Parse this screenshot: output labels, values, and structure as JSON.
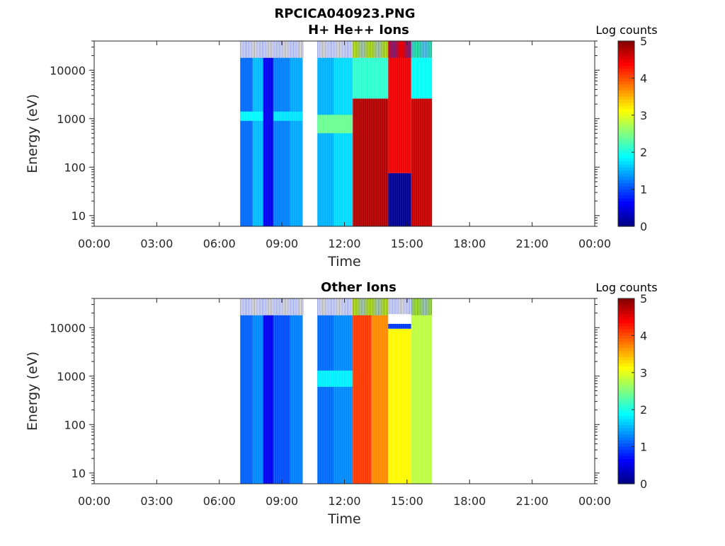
{
  "figure": {
    "title_line1": "RPCICA040923.PNG",
    "background": "#ffffff"
  },
  "chart_data": [
    {
      "type": "heatmap",
      "title": "H+ He++ Ions",
      "xlabel": "Time",
      "ylabel": "Energy (eV)",
      "x_tick_labels": [
        "00:00",
        "03:00",
        "06:00",
        "09:00",
        "12:00",
        "15:00",
        "18:00",
        "21:00",
        "00:00"
      ],
      "x_range_hours": [
        0,
        24
      ],
      "y_scale": "log",
      "y_range_eV": [
        6,
        40000
      ],
      "y_tick_values": [
        10,
        100,
        1000,
        10000
      ],
      "y_tick_labels": [
        "10",
        "100",
        "1000",
        "10000"
      ],
      "colorbar": {
        "label": "Log counts",
        "range": [
          0,
          5
        ],
        "tick_labels": [
          "0",
          "1",
          "2",
          "3",
          "4",
          "5"
        ],
        "colormap": "jet"
      },
      "data_intervals_hours": [
        [
          7.0,
          10.0
        ],
        [
          10.7,
          16.2
        ]
      ],
      "blocks": [
        {
          "t": [
            7.0,
            7.6
          ],
          "e": [
            6,
            18000
          ],
          "log_counts": 1.15
        },
        {
          "t": [
            7.6,
            8.1
          ],
          "e": [
            6,
            18000
          ],
          "log_counts": 1.55
        },
        {
          "t": [
            8.1,
            8.6
          ],
          "e": [
            6,
            18000
          ],
          "log_counts": 0.55
        },
        {
          "t": [
            8.6,
            9.4
          ],
          "e": [
            6,
            18000
          ],
          "log_counts": 1.25
        },
        {
          "t": [
            9.4,
            10.0
          ],
          "e": [
            6,
            18000
          ],
          "log_counts": 1.45
        },
        {
          "t": [
            7.0,
            8.1
          ],
          "e": [
            900,
            1400
          ],
          "log_counts": 1.85
        },
        {
          "t": [
            8.6,
            10.0
          ],
          "e": [
            900,
            1400
          ],
          "log_counts": 1.75
        },
        {
          "t": [
            10.7,
            11.5
          ],
          "e": [
            6,
            18000
          ],
          "log_counts": 1.5
        },
        {
          "t": [
            11.5,
            12.4
          ],
          "e": [
            6,
            18000
          ],
          "log_counts": 1.7
        },
        {
          "t": [
            10.7,
            12.4
          ],
          "e": [
            500,
            1200
          ],
          "log_counts": 2.4
        },
        {
          "t": [
            12.4,
            14.1
          ],
          "e": [
            6,
            2600
          ],
          "log_counts": 4.75
        },
        {
          "t": [
            12.4,
            14.1
          ],
          "e": [
            2600,
            18000
          ],
          "log_counts": 2.1
        },
        {
          "t": [
            12.4,
            14.1
          ],
          "e": [
            18000,
            40000
          ],
          "log_counts": 2.9
        },
        {
          "t": [
            14.1,
            15.2
          ],
          "e": [
            75,
            40000
          ],
          "log_counts": 4.45
        },
        {
          "t": [
            14.1,
            15.2
          ],
          "e": [
            6,
            75
          ],
          "log_counts": 0.1
        },
        {
          "t": [
            15.2,
            16.2
          ],
          "e": [
            6,
            2600
          ],
          "log_counts": 4.65
        },
        {
          "t": [
            15.2,
            16.2
          ],
          "e": [
            2600,
            18000
          ],
          "log_counts": 1.9
        },
        {
          "t": [
            15.2,
            16.2
          ],
          "e": [
            18000,
            40000
          ],
          "log_counts": 2.2
        }
      ]
    },
    {
      "type": "heatmap",
      "title": "Other Ions",
      "xlabel": "Time",
      "ylabel": "Energy (eV)",
      "x_tick_labels": [
        "00:00",
        "03:00",
        "06:00",
        "09:00",
        "12:00",
        "15:00",
        "18:00",
        "21:00",
        "00:00"
      ],
      "x_range_hours": [
        0,
        24
      ],
      "y_scale": "log",
      "y_range_eV": [
        6,
        40000
      ],
      "y_tick_values": [
        10,
        100,
        1000,
        10000
      ],
      "y_tick_labels": [
        "10",
        "100",
        "1000",
        "10000"
      ],
      "colorbar": {
        "label": "Log counts",
        "range": [
          0,
          5
        ],
        "tick_labels": [
          "0",
          "1",
          "2",
          "3",
          "4",
          "5"
        ],
        "colormap": "jet"
      },
      "data_intervals_hours": [
        [
          7.0,
          10.0
        ],
        [
          10.7,
          16.2
        ]
      ],
      "blocks": [
        {
          "t": [
            7.0,
            7.6
          ],
          "e": [
            6,
            18000
          ],
          "log_counts": 1.1
        },
        {
          "t": [
            7.6,
            8.1
          ],
          "e": [
            6,
            18000
          ],
          "log_counts": 1.3
        },
        {
          "t": [
            8.1,
            8.6
          ],
          "e": [
            6,
            18000
          ],
          "log_counts": 0.55
        },
        {
          "t": [
            8.6,
            9.4
          ],
          "e": [
            6,
            18000
          ],
          "log_counts": 1.0
        },
        {
          "t": [
            9.4,
            10.0
          ],
          "e": [
            6,
            18000
          ],
          "log_counts": 1.25
        },
        {
          "t": [
            10.7,
            11.5
          ],
          "e": [
            6,
            18000
          ],
          "log_counts": 1.15
        },
        {
          "t": [
            11.5,
            12.4
          ],
          "e": [
            6,
            18000
          ],
          "log_counts": 1.3
        },
        {
          "t": [
            10.7,
            12.4
          ],
          "e": [
            600,
            1300
          ],
          "log_counts": 1.8
        },
        {
          "t": [
            12.4,
            13.3
          ],
          "e": [
            6,
            40000
          ],
          "log_counts": 4.1
        },
        {
          "t": [
            13.3,
            14.1
          ],
          "e": [
            6,
            40000
          ],
          "log_counts": 3.7
        },
        {
          "t": [
            14.1,
            15.2
          ],
          "e": [
            6,
            9500
          ],
          "log_counts": 3.15
        },
        {
          "t": [
            14.1,
            15.2
          ],
          "e": [
            9500,
            12000
          ],
          "log_counts": 0.9
        },
        {
          "t": [
            15.2,
            16.2
          ],
          "e": [
            6,
            40000
          ],
          "log_counts": 2.8
        },
        {
          "t": [
            12.4,
            14.1
          ],
          "e": [
            18000,
            40000
          ],
          "log_counts": 2.9
        }
      ],
      "gaps": [
        {
          "t": [
            14.1,
            15.2
          ],
          "e": [
            12000,
            19000
          ]
        }
      ]
    }
  ]
}
